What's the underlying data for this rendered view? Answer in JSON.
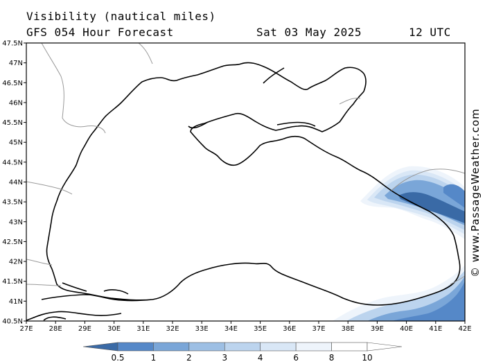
{
  "header": {
    "title": "Visibility (nautical miles)",
    "subtitle": "GFS 054 Hour Forecast",
    "date": "Sat 03 May 2025",
    "time": "12 UTC"
  },
  "watermark": "© www.PassageWeather.com",
  "map": {
    "lon_ticks": [
      "27E",
      "28E",
      "29E",
      "30E",
      "31E",
      "32E",
      "33E",
      "34E",
      "35E",
      "36E",
      "37E",
      "38E",
      "39E",
      "40E",
      "41E",
      "42E"
    ],
    "lat_ticks": [
      "47.5N",
      "47N",
      "46.5N",
      "46N",
      "45.5N",
      "45N",
      "44.5N",
      "44N",
      "43.5N",
      "43N",
      "42.5N",
      "42N",
      "41.5N",
      "41N",
      "40.5N"
    ],
    "lon_range": [
      27,
      42
    ],
    "lat_range": [
      40.5,
      47.5
    ]
  },
  "legend": {
    "labels": [
      "0.5",
      "1",
      "2",
      "3",
      "4",
      "6",
      "8",
      "10"
    ],
    "colors": [
      "#3a6aa6",
      "#5588c8",
      "#7aa6d8",
      "#9dbfe4",
      "#bcd4ee",
      "#d9e7f6",
      "#eef4fb",
      "#ffffff"
    ]
  }
}
